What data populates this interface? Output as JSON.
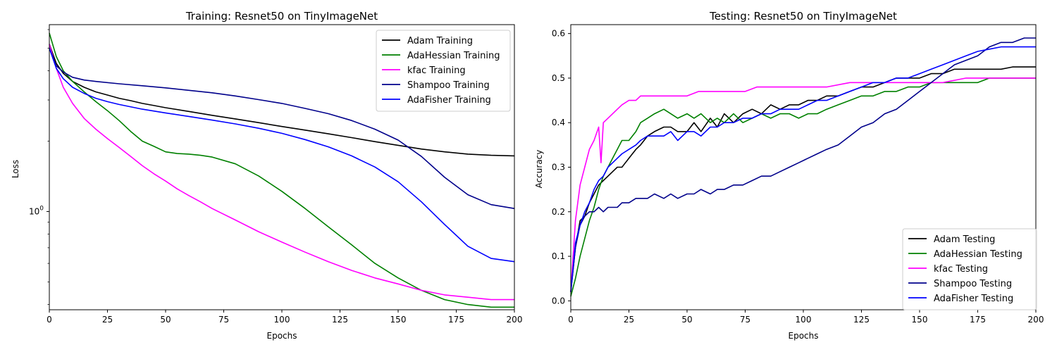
{
  "chart_data": [
    {
      "type": "line",
      "title": "Training: Resnet50 on TinyImageNet",
      "xlabel": "Epochs",
      "ylabel": "Loss",
      "xlim": [
        0,
        200
      ],
      "ylim": [
        0.38,
        6.3
      ],
      "yscale": "log",
      "x_ticks": [
        0,
        25,
        50,
        75,
        100,
        125,
        150,
        175,
        200
      ],
      "y_major_ticks": [
        {
          "value": 1,
          "label": "10^0"
        }
      ],
      "legend_position": "top-right",
      "grid": false,
      "series": [
        {
          "name": "Adam Training",
          "color": "#000000",
          "x": [
            0,
            3,
            6,
            10,
            15,
            20,
            25,
            30,
            35,
            40,
            45,
            50,
            60,
            70,
            80,
            90,
            100,
            110,
            120,
            130,
            140,
            150,
            160,
            170,
            180,
            190,
            200
          ],
          "y": [
            5.2,
            4.3,
            3.9,
            3.6,
            3.4,
            3.25,
            3.15,
            3.05,
            2.98,
            2.9,
            2.84,
            2.78,
            2.68,
            2.58,
            2.49,
            2.4,
            2.31,
            2.23,
            2.15,
            2.07,
            1.99,
            1.92,
            1.85,
            1.8,
            1.76,
            1.74,
            1.73
          ]
        },
        {
          "name": "AdaHessian Training",
          "color": "#008000",
          "x": [
            0,
            3,
            6,
            10,
            15,
            20,
            25,
            30,
            35,
            40,
            45,
            50,
            55,
            60,
            65,
            70,
            80,
            90,
            100,
            110,
            120,
            130,
            140,
            150,
            160,
            170,
            180,
            190,
            200
          ],
          "y": [
            5.8,
            4.6,
            4.0,
            3.6,
            3.25,
            2.95,
            2.7,
            2.45,
            2.2,
            2.0,
            1.9,
            1.8,
            1.77,
            1.76,
            1.74,
            1.71,
            1.6,
            1.42,
            1.22,
            1.03,
            0.86,
            0.72,
            0.6,
            0.52,
            0.46,
            0.42,
            0.4,
            0.39,
            0.39
          ]
        },
        {
          "name": "kfac Training",
          "color": "#ff00ff",
          "x": [
            0,
            3,
            6,
            10,
            15,
            20,
            25,
            30,
            35,
            40,
            45,
            50,
            55,
            60,
            65,
            70,
            80,
            90,
            100,
            110,
            120,
            130,
            140,
            150,
            160,
            170,
            180,
            190,
            200
          ],
          "y": [
            5.2,
            4.1,
            3.4,
            2.9,
            2.5,
            2.25,
            2.05,
            1.88,
            1.72,
            1.57,
            1.45,
            1.35,
            1.25,
            1.17,
            1.1,
            1.03,
            0.92,
            0.82,
            0.74,
            0.67,
            0.61,
            0.56,
            0.52,
            0.49,
            0.46,
            0.44,
            0.43,
            0.42,
            0.42
          ]
        },
        {
          "name": "Shampoo Training",
          "color": "#00008b",
          "x": [
            0,
            3,
            6,
            10,
            15,
            20,
            30,
            40,
            50,
            60,
            70,
            80,
            90,
            100,
            110,
            120,
            130,
            140,
            150,
            160,
            170,
            180,
            190,
            200
          ],
          "y": [
            5.0,
            4.2,
            3.95,
            3.75,
            3.65,
            3.6,
            3.52,
            3.45,
            3.38,
            3.3,
            3.22,
            3.12,
            3.01,
            2.9,
            2.76,
            2.62,
            2.45,
            2.25,
            2.02,
            1.72,
            1.4,
            1.18,
            1.07,
            1.03
          ]
        },
        {
          "name": "AdaFisher Training",
          "color": "#0000ff",
          "x": [
            0,
            3,
            6,
            10,
            15,
            20,
            25,
            30,
            40,
            50,
            60,
            70,
            80,
            90,
            100,
            110,
            120,
            130,
            140,
            150,
            160,
            170,
            180,
            190,
            200
          ],
          "y": [
            5.0,
            4.1,
            3.7,
            3.4,
            3.2,
            3.05,
            2.95,
            2.87,
            2.74,
            2.64,
            2.55,
            2.46,
            2.37,
            2.27,
            2.16,
            2.03,
            1.89,
            1.73,
            1.55,
            1.34,
            1.1,
            0.88,
            0.71,
            0.63,
            0.61
          ]
        }
      ]
    },
    {
      "type": "line",
      "title": "Testing: Resnet50 on TinyImageNet",
      "xlabel": "Epochs",
      "ylabel": "Accuracy",
      "xlim": [
        0,
        200
      ],
      "ylim": [
        -0.02,
        0.62
      ],
      "x_ticks": [
        0,
        25,
        50,
        75,
        100,
        125,
        150,
        175,
        200
      ],
      "y_ticks": [
        0.0,
        0.1,
        0.2,
        0.3,
        0.4,
        0.5,
        0.6
      ],
      "y_tick_labels": [
        "0.0",
        "0.1",
        "0.2",
        "0.3",
        "0.4",
        "0.5",
        "0.6"
      ],
      "legend_position": "bottom-right",
      "grid": false,
      "series": [
        {
          "name": "Adam Testing",
          "color": "#000000",
          "x": [
            0,
            2,
            4,
            6,
            8,
            10,
            12,
            14,
            16,
            18,
            20,
            22,
            25,
            28,
            30,
            33,
            36,
            40,
            43,
            46,
            50,
            53,
            56,
            60,
            63,
            66,
            70,
            74,
            78,
            82,
            86,
            90,
            94,
            98,
            102,
            106,
            110,
            115,
            120,
            125,
            130,
            135,
            140,
            145,
            150,
            155,
            160,
            165,
            170,
            175,
            180,
            185,
            190,
            195,
            200
          ],
          "y": [
            0.02,
            0.12,
            0.18,
            0.19,
            0.22,
            0.24,
            0.26,
            0.27,
            0.28,
            0.29,
            0.3,
            0.3,
            0.32,
            0.34,
            0.35,
            0.37,
            0.38,
            0.39,
            0.39,
            0.38,
            0.38,
            0.4,
            0.38,
            0.41,
            0.39,
            0.42,
            0.4,
            0.42,
            0.43,
            0.42,
            0.44,
            0.43,
            0.44,
            0.44,
            0.45,
            0.45,
            0.46,
            0.46,
            0.47,
            0.48,
            0.48,
            0.49,
            0.5,
            0.5,
            0.5,
            0.51,
            0.51,
            0.52,
            0.52,
            0.52,
            0.52,
            0.52,
            0.525,
            0.525,
            0.525
          ]
        },
        {
          "name": "AdaHessian Testing",
          "color": "#008000",
          "x": [
            0,
            2,
            4,
            6,
            8,
            10,
            12,
            14,
            16,
            18,
            20,
            22,
            25,
            28,
            30,
            33,
            36,
            40,
            43,
            46,
            50,
            53,
            56,
            60,
            63,
            66,
            70,
            74,
            78,
            82,
            86,
            90,
            94,
            98,
            102,
            106,
            110,
            115,
            120,
            125,
            130,
            135,
            140,
            145,
            150,
            155,
            160,
            165,
            170,
            175,
            180,
            185,
            190,
            195,
            200
          ],
          "y": [
            0.01,
            0.05,
            0.1,
            0.14,
            0.18,
            0.21,
            0.25,
            0.28,
            0.3,
            0.32,
            0.34,
            0.36,
            0.36,
            0.38,
            0.4,
            0.41,
            0.42,
            0.43,
            0.42,
            0.41,
            0.42,
            0.41,
            0.42,
            0.4,
            0.41,
            0.4,
            0.42,
            0.4,
            0.41,
            0.42,
            0.41,
            0.42,
            0.42,
            0.41,
            0.42,
            0.42,
            0.43,
            0.44,
            0.45,
            0.46,
            0.46,
            0.47,
            0.47,
            0.48,
            0.48,
            0.49,
            0.49,
            0.49,
            0.49,
            0.49,
            0.5,
            0.5,
            0.5,
            0.5,
            0.5
          ]
        },
        {
          "name": "kfac Testing",
          "color": "#ff00ff",
          "x": [
            0,
            2,
            4,
            6,
            8,
            10,
            12,
            13,
            14,
            16,
            18,
            20,
            22,
            25,
            28,
            30,
            33,
            36,
            40,
            43,
            46,
            50,
            55,
            60,
            65,
            70,
            75,
            80,
            90,
            100,
            110,
            120,
            130,
            140,
            150,
            160,
            170,
            180,
            190,
            200
          ],
          "y": [
            0.02,
            0.18,
            0.26,
            0.3,
            0.34,
            0.36,
            0.39,
            0.31,
            0.4,
            0.41,
            0.42,
            0.43,
            0.44,
            0.45,
            0.45,
            0.46,
            0.46,
            0.46,
            0.46,
            0.46,
            0.46,
            0.46,
            0.47,
            0.47,
            0.47,
            0.47,
            0.47,
            0.48,
            0.48,
            0.48,
            0.48,
            0.49,
            0.49,
            0.49,
            0.49,
            0.49,
            0.5,
            0.5,
            0.5,
            0.5
          ]
        },
        {
          "name": "Shampoo Testing",
          "color": "#00008b",
          "x": [
            0,
            2,
            4,
            6,
            8,
            10,
            12,
            14,
            16,
            18,
            20,
            22,
            25,
            28,
            30,
            33,
            36,
            40,
            43,
            46,
            50,
            53,
            56,
            60,
            63,
            66,
            70,
            74,
            78,
            82,
            86,
            90,
            94,
            98,
            102,
            106,
            110,
            115,
            120,
            125,
            130,
            135,
            140,
            145,
            150,
            155,
            160,
            165,
            170,
            175,
            180,
            185,
            190,
            195,
            200
          ],
          "y": [
            0.02,
            0.12,
            0.17,
            0.19,
            0.2,
            0.2,
            0.21,
            0.2,
            0.21,
            0.21,
            0.21,
            0.22,
            0.22,
            0.23,
            0.23,
            0.23,
            0.24,
            0.23,
            0.24,
            0.23,
            0.24,
            0.24,
            0.25,
            0.24,
            0.25,
            0.25,
            0.26,
            0.26,
            0.27,
            0.28,
            0.28,
            0.29,
            0.3,
            0.31,
            0.32,
            0.33,
            0.34,
            0.35,
            0.37,
            0.39,
            0.4,
            0.42,
            0.43,
            0.45,
            0.47,
            0.49,
            0.51,
            0.53,
            0.54,
            0.55,
            0.57,
            0.58,
            0.58,
            0.59,
            0.59
          ]
        },
        {
          "name": "AdaFisher Testing",
          "color": "#0000ff",
          "x": [
            0,
            2,
            4,
            6,
            8,
            10,
            12,
            14,
            16,
            18,
            20,
            22,
            25,
            28,
            30,
            33,
            36,
            40,
            43,
            46,
            50,
            53,
            56,
            60,
            63,
            66,
            70,
            74,
            78,
            82,
            86,
            90,
            94,
            98,
            102,
            106,
            110,
            115,
            120,
            125,
            130,
            135,
            140,
            145,
            150,
            155,
            160,
            165,
            170,
            175,
            180,
            185,
            190,
            195,
            200
          ],
          "y": [
            0.02,
            0.13,
            0.17,
            0.2,
            0.22,
            0.25,
            0.27,
            0.28,
            0.3,
            0.31,
            0.32,
            0.33,
            0.34,
            0.35,
            0.36,
            0.37,
            0.37,
            0.37,
            0.38,
            0.36,
            0.38,
            0.38,
            0.37,
            0.39,
            0.39,
            0.4,
            0.4,
            0.41,
            0.41,
            0.42,
            0.42,
            0.43,
            0.43,
            0.43,
            0.44,
            0.45,
            0.45,
            0.46,
            0.47,
            0.48,
            0.49,
            0.49,
            0.5,
            0.5,
            0.51,
            0.52,
            0.53,
            0.54,
            0.55,
            0.56,
            0.565,
            0.57,
            0.57,
            0.57,
            0.57
          ]
        }
      ]
    }
  ]
}
